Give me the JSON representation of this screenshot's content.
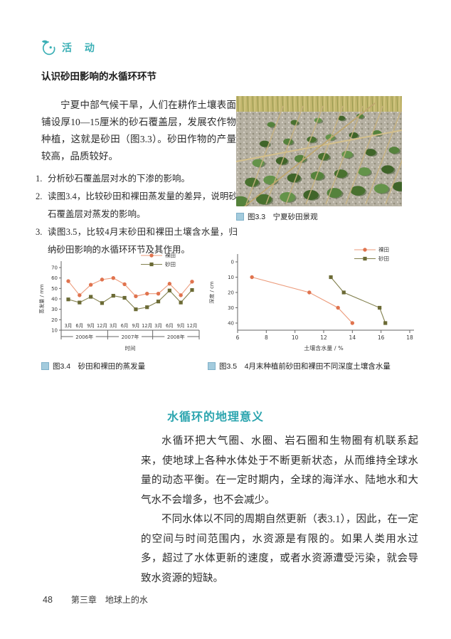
{
  "page": {
    "number": "48",
    "footer_chapter": "第三章　地球上的水"
  },
  "activity": {
    "label": "活 动",
    "title": "认识砂田影响的水循环环节",
    "intro": "宁夏中部气候干旱，人们在耕作土壤表面铺设厚10—15厘米的砂石覆盖层，发展农作物种植，这就是砂田（图3.3）。砂田作物的产量较高，品质较好。",
    "questions": [
      {
        "num": "1.",
        "text": "分析砂石覆盖层对水的下渗的影响。"
      },
      {
        "num": "2.",
        "text": "读图3.4，比较砂田和裸田蒸发量的差异，说明砂石覆盖层对蒸发的影响。"
      },
      {
        "num": "3.",
        "text": "读图3.5，比较4月末砂田和裸田土壤含水量，归纳砂田影响的水循环环节及其作用。"
      }
    ],
    "photo_caption": "图3.3　宁夏砂田景观"
  },
  "figures": {
    "fig34_caption": "图3.4　砂田和裸田的蒸发量",
    "fig35_caption": "图3.5　4月末种植前砂田和裸田不同深度土壤含水量"
  },
  "section": {
    "title": "水循环的地理意义",
    "paragraphs": [
      "水循环把大气圈、水圈、岩石圈和生物圈有机联系起来，使地球上各种水体处于不断更新状态，从而维持全球水量的动态平衡。在一定时期内，全球的海洋水、陆地水和大气水不会增多，也不会减少。",
      "不同水体以不同的周期自然更新（表3.1），因此，在一定的空间与时间范围内，水资源是有限的。如果人类用水过多，超过了水体更新的速度，或者水资源遭受污染，就会导致水资源的短缺。"
    ]
  },
  "colors": {
    "accent_teal": "#3AAFB5",
    "caption_square": "#A3CBDD",
    "bare_field": "#E0734E",
    "gravel_field": "#6B6A35"
  },
  "chart_data": [
    {
      "id": "fig34",
      "type": "line",
      "title": "砂田和裸田的蒸发量",
      "xlabel": "时间",
      "ylabel": "蒸发量 / mm",
      "ylim": [
        10,
        70
      ],
      "yticks": [
        10,
        20,
        30,
        40,
        50,
        60,
        70
      ],
      "categories": [
        "3月",
        "6月",
        "9月",
        "12月",
        "3月",
        "6月",
        "9月",
        "12月",
        "3月",
        "6月",
        "9月",
        "12月"
      ],
      "year_groups": [
        "2006年",
        "2007年",
        "2008年"
      ],
      "legend_position": "top-right",
      "grid": false,
      "series": [
        {
          "name": "裸田",
          "marker": "circle",
          "color": "#E0734E",
          "line": "#EC9B7B",
          "values": [
            57,
            43.5,
            53.5,
            58.5,
            60,
            54,
            42.5,
            45,
            45,
            54.5,
            43.5,
            56.5
          ]
        },
        {
          "name": "砂田",
          "marker": "square",
          "color": "#6B6A35",
          "line": "#83814F",
          "values": [
            39.5,
            36.5,
            42,
            36,
            43,
            41,
            30,
            32,
            37.5,
            48,
            36.5,
            48.5
          ]
        }
      ]
    },
    {
      "id": "fig35",
      "type": "line",
      "title": "4月末种植前砂田和裸田不同深度土壤含水量",
      "xlabel": "土壤含水量 / %",
      "ylabel": "深度 / cm",
      "xlim": [
        6,
        18
      ],
      "xticks": [
        6,
        8,
        10,
        12,
        14,
        16,
        18
      ],
      "yticks": [
        0,
        10,
        20,
        30,
        40
      ],
      "y_inverted": true,
      "legend_position": "top-right",
      "grid": false,
      "series": [
        {
          "name": "裸田",
          "marker": "circle",
          "color": "#E0734E",
          "line": "#EC9B7B",
          "points": [
            [
              7,
              10
            ],
            [
              11,
              20
            ],
            [
              13,
              30
            ],
            [
              14,
              40
            ]
          ]
        },
        {
          "name": "砂田",
          "marker": "square",
          "color": "#6B6A35",
          "line": "#83814F",
          "points": [
            [
              12.5,
              10
            ],
            [
              13.4,
              20
            ],
            [
              15.9,
              30
            ],
            [
              16.3,
              40
            ]
          ]
        }
      ]
    }
  ]
}
